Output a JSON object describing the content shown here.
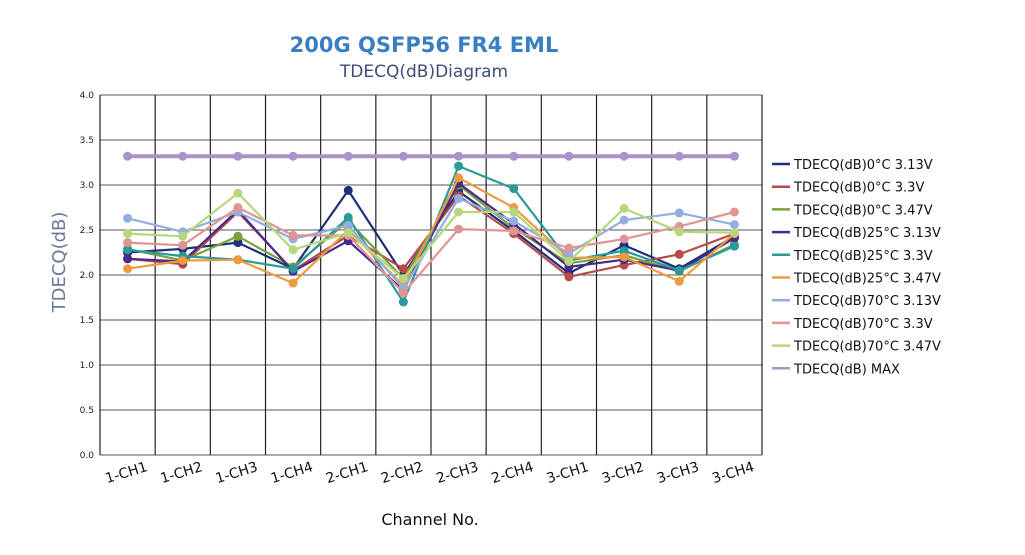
{
  "chart_data": {
    "type": "line",
    "title": "200G QSFP56 FR4 EML",
    "subtitle": "TDECQ(dB)Diagram",
    "xlabel": "Channel No.",
    "ylabel": "TDECQ(dB)",
    "ylim": [
      0,
      4
    ],
    "yticks": [
      "0.0",
      "0.5",
      "1.0",
      "1.5",
      "2.0",
      "2.5",
      "3.0",
      "3.5",
      "4.0"
    ],
    "ytick_values": [
      0,
      0.5,
      1.0,
      1.5,
      2.0,
      2.5,
      3.0,
      3.5,
      4.0
    ],
    "categories": [
      "1-CH1",
      "1-CH2",
      "1-CH3",
      "1-CH4",
      "2-CH1",
      "2-CH2",
      "2-CH3",
      "2-CH4",
      "3-CH1",
      "3-CH2",
      "3-CH3",
      "3-CH4"
    ],
    "grid": true,
    "legend_position": "right",
    "series": [
      {
        "name": "TDECQ(dB)0°C 3.13V",
        "color": "#1f2f7a",
        "values": [
          2.25,
          2.29,
          2.36,
          2.07,
          2.94,
          2.0,
          2.93,
          2.49,
          2.02,
          2.33,
          2.07,
          2.43
        ]
      },
      {
        "name": "TDECQ(dB)0°C 3.3V",
        "color": "#b84a4a",
        "values": [
          2.18,
          2.12,
          2.7,
          2.05,
          2.44,
          2.07,
          2.88,
          2.46,
          1.98,
          2.11,
          2.23,
          2.46
        ]
      },
      {
        "name": "TDECQ(dB)0°C 3.47V",
        "color": "#78a23a",
        "values": [
          2.29,
          2.16,
          2.43,
          2.09,
          2.6,
          1.96,
          3.0,
          2.52,
          2.13,
          2.22,
          2.04,
          2.34
        ]
      },
      {
        "name": "TDECQ(dB)25°C 3.13V",
        "color": "#4b2a8a",
        "values": [
          2.18,
          2.15,
          2.72,
          2.04,
          2.38,
          1.83,
          3.02,
          2.57,
          2.09,
          2.17,
          2.05,
          2.41
        ]
      },
      {
        "name": "TDECQ(dB)25°C 3.3V",
        "color": "#2a9a9a",
        "values": [
          2.28,
          2.21,
          2.17,
          2.07,
          2.64,
          1.7,
          3.21,
          2.96,
          2.16,
          2.27,
          2.05,
          2.32
        ]
      },
      {
        "name": "TDECQ(dB)25°C 3.47V",
        "color": "#ee9a3e",
        "values": [
          2.07,
          2.16,
          2.17,
          1.91,
          2.5,
          1.88,
          3.08,
          2.75,
          2.19,
          2.2,
          1.93,
          2.46
        ]
      },
      {
        "name": "TDECQ(dB)70°C 3.13V",
        "color": "#93aee0",
        "values": [
          2.63,
          2.48,
          2.7,
          2.4,
          2.55,
          1.85,
          2.85,
          2.6,
          2.24,
          2.61,
          2.69,
          2.56
        ]
      },
      {
        "name": "TDECQ(dB)70°C 3.3V",
        "color": "#e09595",
        "values": [
          2.36,
          2.33,
          2.75,
          2.44,
          2.44,
          1.8,
          2.51,
          2.49,
          2.3,
          2.4,
          2.54,
          2.7
        ]
      },
      {
        "name": "TDECQ(dB)70°C 3.47V",
        "color": "#b6d77c",
        "values": [
          2.46,
          2.43,
          2.91,
          2.28,
          2.47,
          1.96,
          2.7,
          2.7,
          2.15,
          2.74,
          2.48,
          2.47
        ]
      },
      {
        "name": "TDECQ(dB) MAX",
        "color": "#a795c9",
        "values": [
          3.32,
          3.32,
          3.32,
          3.32,
          3.32,
          3.32,
          3.32,
          3.32,
          3.32,
          3.32,
          3.32,
          3.32
        ]
      }
    ]
  }
}
